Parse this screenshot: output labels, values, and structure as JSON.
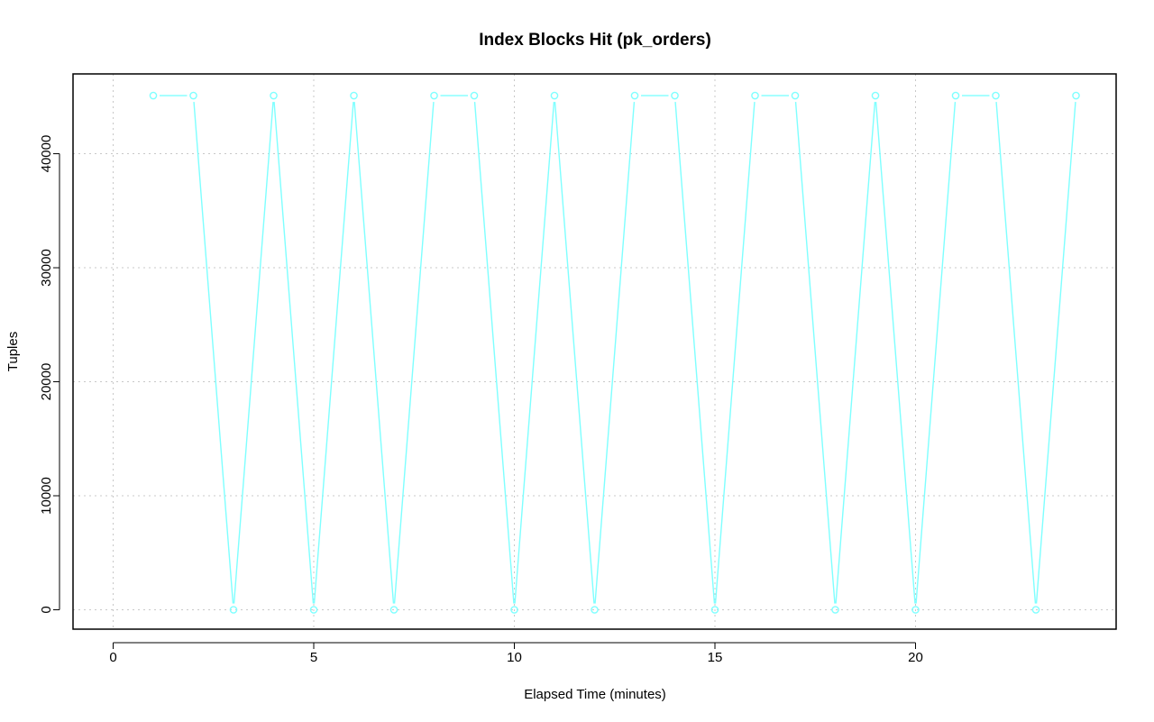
{
  "chart_data": {
    "type": "line",
    "title": "Index Blocks Hit (pk_orders)",
    "xlabel": "Elapsed Time (minutes)",
    "ylabel": "Tuples",
    "xlim": [
      -1,
      25
    ],
    "ylim": [
      -1700,
      47000
    ],
    "x_ticks": [
      0,
      5,
      10,
      15,
      20
    ],
    "y_ticks": [
      0,
      10000,
      20000,
      30000,
      40000
    ],
    "x_tick_labels": [
      "0",
      "5",
      "10",
      "15",
      "20"
    ],
    "y_tick_labels": [
      "0",
      "10000",
      "20000",
      "30000",
      "40000"
    ],
    "grid": true,
    "series": [
      {
        "color": "#7fffff",
        "marker": "open-circle",
        "x": [
          1,
          2,
          3,
          4,
          5,
          6,
          7,
          8,
          9,
          10,
          11,
          12,
          13,
          14,
          15,
          16,
          17,
          18,
          19,
          20,
          21,
          22,
          23,
          24
        ],
        "y": [
          45100,
          45100,
          0,
          45100,
          0,
          45100,
          0,
          45100,
          45100,
          0,
          45100,
          0,
          45100,
          45100,
          0,
          45100,
          45100,
          0,
          45100,
          0,
          45100,
          45100,
          0,
          45100
        ]
      }
    ]
  }
}
